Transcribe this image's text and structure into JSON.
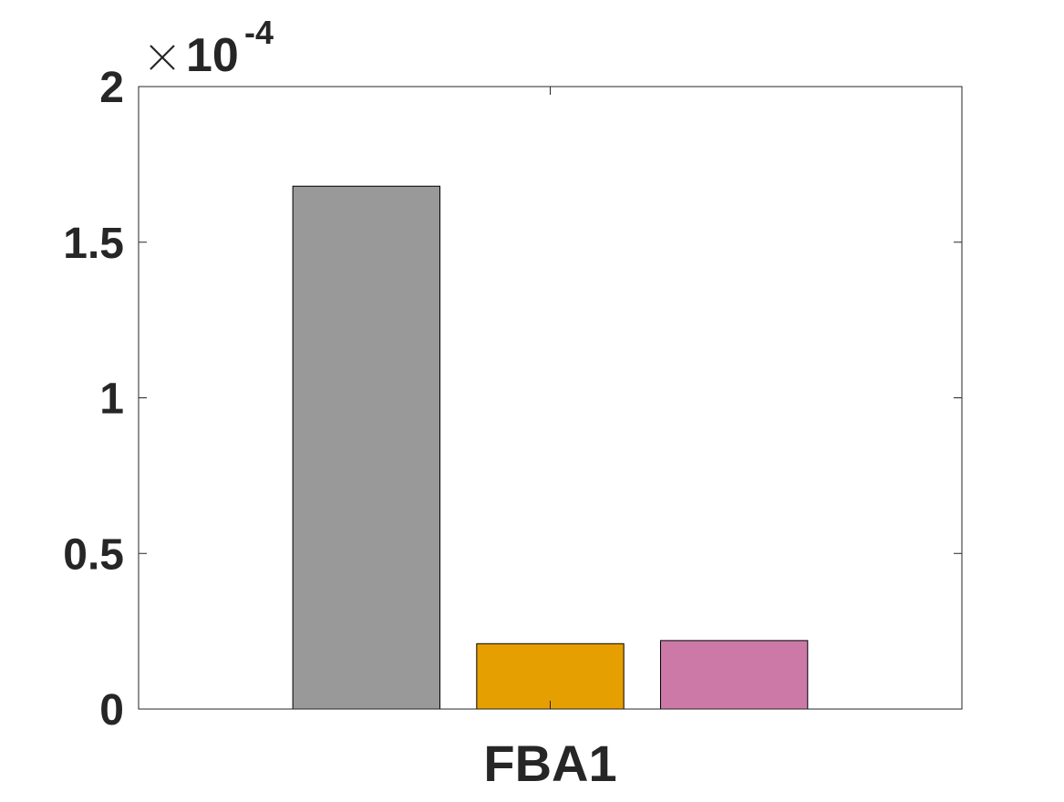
{
  "chart_data": {
    "type": "bar",
    "title": "",
    "xlabel": "",
    "ylabel": "",
    "categories": [
      "FBA1"
    ],
    "series": [
      {
        "values": [
          0.000168
        ],
        "color": "#999999"
      },
      {
        "values": [
          2.1e-05
        ],
        "color": "#E69F00"
      },
      {
        "values": [
          2.2e-05
        ],
        "color": "#CC79A7"
      }
    ],
    "ylim": [
      0,
      0.0002
    ],
    "y_exponent": "-4",
    "y_exponent_prefix": "10",
    "yticks": [
      0,
      5e-05,
      0.0001,
      0.00015,
      0.0002
    ],
    "ytick_labels": [
      "0",
      "0.5",
      "1",
      "1.5",
      "2"
    ],
    "grid": false,
    "legend": "none",
    "box": true
  }
}
